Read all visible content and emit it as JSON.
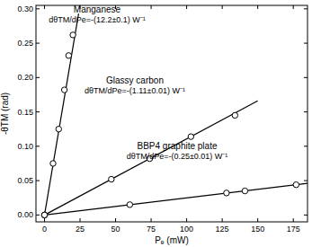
{
  "chart_data": {
    "type": "scatter",
    "x_label": "Pₑ (mW)",
    "y_label": "-θTM (rad)",
    "xlim": [
      -6,
      185
    ],
    "ylim": [
      -0.01,
      0.305
    ],
    "xticks": [
      0,
      25,
      50,
      75,
      100,
      125,
      150,
      175
    ],
    "yticks": [
      {
        "value": 0,
        "label": "0.00"
      },
      {
        "value": 0.05,
        "label": "0.05"
      },
      {
        "value": 0.1,
        "label": "0.10"
      },
      {
        "value": 0.15,
        "label": "0.15"
      },
      {
        "value": 0.2,
        "label": "0.20"
      },
      {
        "value": 0.25,
        "label": "0.25"
      },
      {
        "value": 0.3,
        "label": "0.30"
      }
    ],
    "grid": false,
    "series": [
      {
        "name": "Manganese",
        "marker": "circle",
        "color": "#000000",
        "x": [
          0,
          6,
          10,
          14,
          17,
          20
        ],
        "values": [
          0,
          0.075,
          0.125,
          0.182,
          0.232,
          0.262
        ]
      },
      {
        "name": "Glassy carbon",
        "marker": "circle",
        "color": "#000000",
        "x": [
          0,
          47,
          74,
          103,
          134
        ],
        "values": [
          0,
          0.052,
          0.082,
          0.114,
          0.145
        ]
      },
      {
        "name": "BBP4 graphite plate",
        "marker": "circle",
        "color": "#000000",
        "x": [
          0,
          60,
          128,
          141,
          177
        ],
        "values": [
          0,
          0.015,
          0.032,
          0.035,
          0.044
        ]
      },
      {
        "type": "line",
        "line_style": "solid",
        "color": "#000000",
        "x": [
          0,
          24
        ],
        "values": [
          0,
          0.293
        ]
      },
      {
        "type": "line",
        "line_style": "solid",
        "color": "#000000",
        "x": [
          0,
          150
        ],
        "values": [
          0,
          0.166
        ]
      },
      {
        "type": "line",
        "line_style": "solid",
        "color": "#000000",
        "x": [
          0,
          185
        ],
        "values": [
          0,
          0.046
        ]
      }
    ],
    "annotations": [
      "dθTM/dPe=-(12.2±0.1) W⁻¹",
      "dθTM/dPe=-(1.11±0.01) W⁻¹",
      "dθTM/dPe=-(0.25±0.01) W⁻¹"
    ]
  }
}
